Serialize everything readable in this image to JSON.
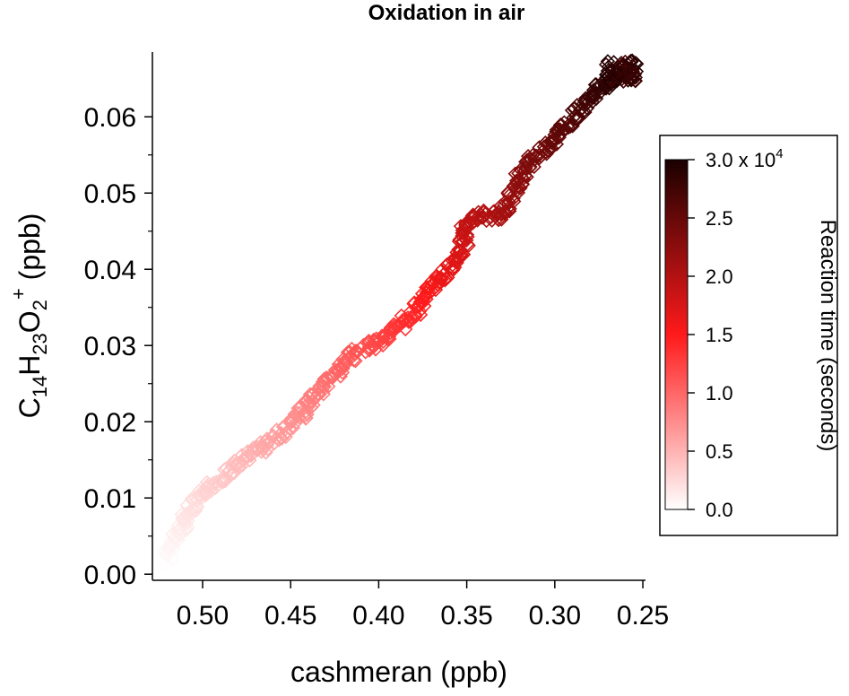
{
  "chart_data": {
    "type": "scatter",
    "title": "Oxidation in air",
    "xlabel": "cashmeran (ppb)",
    "ylabel": {
      "parts": [
        {
          "t": "C",
          "s": "n"
        },
        {
          "t": "14",
          "s": "sub"
        },
        {
          "t": "H",
          "s": "n"
        },
        {
          "t": "23",
          "s": "sub"
        },
        {
          "t": "O",
          "s": "n"
        },
        {
          "t": "2",
          "s": "sub"
        },
        {
          "t": "+",
          "s": "sup"
        },
        {
          "t": " (ppb)",
          "s": "n"
        }
      ]
    },
    "x_reversed": true,
    "xlim": [
      0.5285,
      0.2485
    ],
    "ylim": [
      -0.0008,
      0.0685
    ],
    "x_ticks": [
      "0.50",
      "0.45",
      "0.40",
      "0.35",
      "0.30",
      "0.25"
    ],
    "y_ticks": [
      "0.00",
      "0.01",
      "0.02",
      "0.03",
      "0.04",
      "0.05",
      "0.06"
    ],
    "marker": "open-diamond",
    "color_by": "reaction_time",
    "colormap": [
      "#ffffff",
      "#ff1a1a",
      "#1a0000"
    ],
    "colorbar": {
      "label": "Reaction time (seconds)",
      "range": [
        0,
        30000
      ],
      "ticks": [
        "0.0",
        "0.5",
        "1.0",
        "1.5",
        "2.0",
        "2.5",
        "3.0 x 10"
      ],
      "top_exponent": "4"
    },
    "path": [
      [
        0.523,
        0.001
      ],
      [
        0.517,
        0.004
      ],
      [
        0.508,
        0.008
      ],
      [
        0.497,
        0.011
      ],
      [
        0.488,
        0.013
      ],
      [
        0.47,
        0.016
      ],
      [
        0.452,
        0.019
      ],
      [
        0.44,
        0.022
      ],
      [
        0.43,
        0.025
      ],
      [
        0.418,
        0.028
      ],
      [
        0.405,
        0.03
      ],
      [
        0.39,
        0.032
      ],
      [
        0.378,
        0.035
      ],
      [
        0.368,
        0.038
      ],
      [
        0.36,
        0.04
      ],
      [
        0.352,
        0.043
      ],
      [
        0.35,
        0.046
      ],
      [
        0.344,
        0.047
      ],
      [
        0.332,
        0.047
      ],
      [
        0.325,
        0.049
      ],
      [
        0.318,
        0.053
      ],
      [
        0.305,
        0.056
      ],
      [
        0.292,
        0.059
      ],
      [
        0.282,
        0.062
      ],
      [
        0.274,
        0.064
      ],
      [
        0.266,
        0.065
      ],
      [
        0.258,
        0.066
      ]
    ]
  }
}
